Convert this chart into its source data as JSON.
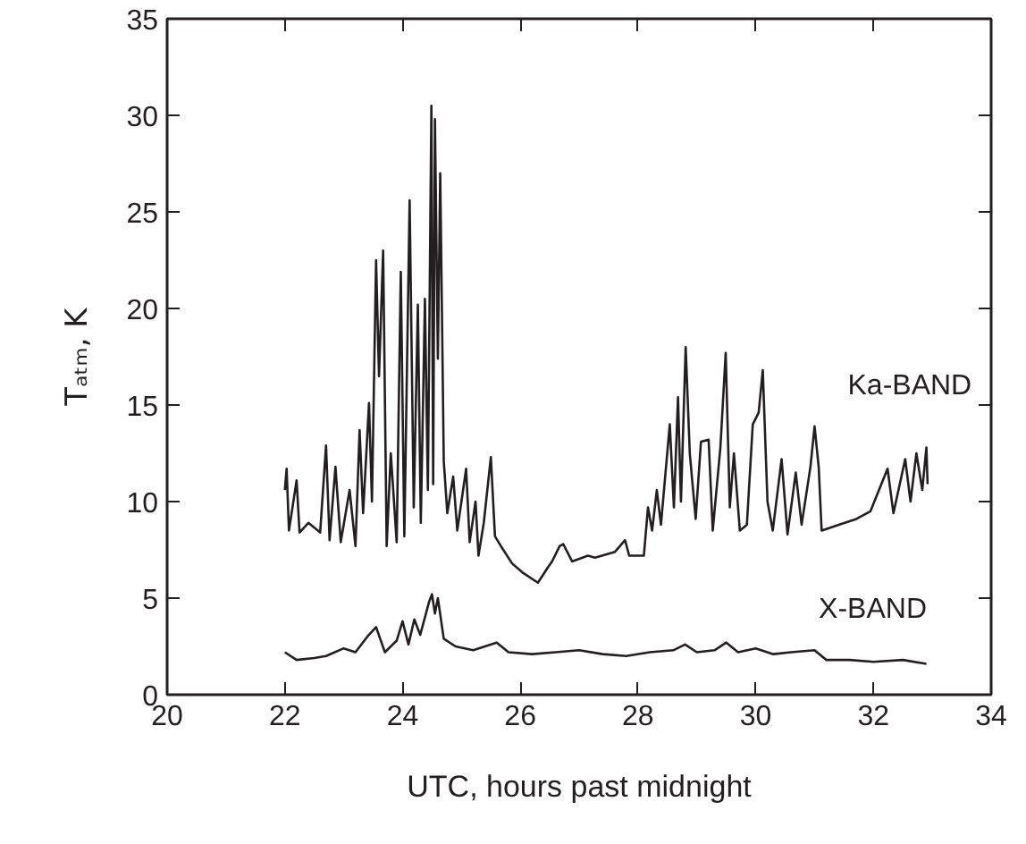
{
  "chart_data": {
    "type": "line",
    "xlabel": "UTC, hours past midnight",
    "ylabel": "Tₐₜₘ, K",
    "xlim": [
      20,
      34
    ],
    "xticks": [
      20,
      22,
      24,
      26,
      28,
      30,
      32,
      34
    ],
    "ylim": [
      0,
      35
    ],
    "yticks": [
      0,
      5,
      10,
      15,
      20,
      25,
      30,
      35
    ],
    "grid": false,
    "legend": "right",
    "marker": "none",
    "line_style": "solid",
    "series": [
      {
        "name": "Ka-BAND",
        "color": "#231f20",
        "x": [
          22.0,
          22.03,
          22.07,
          22.2,
          22.25,
          22.4,
          22.6,
          22.7,
          22.76,
          22.86,
          22.95,
          23.1,
          23.2,
          23.27,
          23.33,
          23.43,
          23.48,
          23.55,
          23.6,
          23.67,
          23.73,
          23.8,
          23.9,
          23.97,
          24.03,
          24.12,
          24.19,
          24.26,
          24.31,
          24.38,
          24.43,
          24.49,
          24.52,
          24.55,
          24.6,
          24.64,
          24.7,
          24.76,
          24.86,
          24.93,
          25.08,
          25.14,
          25.24,
          25.29,
          25.38,
          25.5,
          25.57,
          25.67,
          25.86,
          26.05,
          26.3,
          26.47,
          26.54,
          26.67,
          26.73,
          26.88,
          27.15,
          27.27,
          27.61,
          27.78,
          27.85,
          28.1,
          28.17,
          28.24,
          28.32,
          28.39,
          28.54,
          28.61,
          28.68,
          28.73,
          28.81,
          28.88,
          28.98,
          29.07,
          29.2,
          29.27,
          29.4,
          29.49,
          29.56,
          29.63,
          29.73,
          29.85,
          29.95,
          30.05,
          30.12,
          30.2,
          30.29,
          30.44,
          30.54,
          30.68,
          30.78,
          30.93,
          31.0,
          31.07,
          31.12,
          31.41,
          31.71,
          31.95,
          32.24,
          32.34,
          32.54,
          32.63,
          32.73,
          32.83,
          32.9,
          32.92
        ],
        "values": [
          10.6,
          11.7,
          8.5,
          11.1,
          8.4,
          8.9,
          8.4,
          12.9,
          8.0,
          11.8,
          7.9,
          10.6,
          7.7,
          13.7,
          9.4,
          15.1,
          10.0,
          22.5,
          16.5,
          23.0,
          7.7,
          12.5,
          7.9,
          21.9,
          8.2,
          25.6,
          9.7,
          20.2,
          8.9,
          20.5,
          10.6,
          30.5,
          10.9,
          29.8,
          17.4,
          27.0,
          12.1,
          9.4,
          11.3,
          8.5,
          11.7,
          7.9,
          10.0,
          7.2,
          8.9,
          12.3,
          8.2,
          7.7,
          6.8,
          6.3,
          5.8,
          6.6,
          6.9,
          7.7,
          7.8,
          6.9,
          7.2,
          7.1,
          7.4,
          8.0,
          7.2,
          7.2,
          9.7,
          8.5,
          10.6,
          8.8,
          14.0,
          9.7,
          15.4,
          10.0,
          18.0,
          12.5,
          9.1,
          13.1,
          13.2,
          8.5,
          12.8,
          17.7,
          9.7,
          12.5,
          8.5,
          8.8,
          14.0,
          14.6,
          16.8,
          10.0,
          8.5,
          12.2,
          8.3,
          11.5,
          8.8,
          11.8,
          13.9,
          11.8,
          8.5,
          8.8,
          9.1,
          9.5,
          11.7,
          9.4,
          12.2,
          10.0,
          12.5,
          10.6,
          12.8,
          10.9
        ]
      },
      {
        "name": "X-BAND",
        "color": "#231f20",
        "x": [
          22.0,
          22.2,
          22.5,
          22.7,
          23.0,
          23.2,
          23.4,
          23.55,
          23.7,
          23.9,
          24.0,
          24.1,
          24.2,
          24.3,
          24.45,
          24.5,
          24.55,
          24.6,
          24.7,
          24.9,
          25.2,
          25.6,
          25.8,
          26.2,
          26.6,
          27.0,
          27.4,
          27.8,
          28.2,
          28.6,
          28.8,
          29.0,
          29.3,
          29.5,
          29.7,
          30.0,
          30.3,
          30.6,
          31.0,
          31.2,
          31.6,
          32.0,
          32.5,
          32.9
        ],
        "values": [
          2.2,
          1.8,
          1.9,
          2.0,
          2.4,
          2.2,
          3.0,
          3.5,
          2.2,
          2.8,
          3.8,
          2.6,
          3.9,
          3.1,
          4.8,
          5.2,
          4.2,
          5.0,
          2.9,
          2.5,
          2.3,
          2.7,
          2.2,
          2.1,
          2.2,
          2.3,
          2.1,
          2.0,
          2.2,
          2.3,
          2.6,
          2.2,
          2.3,
          2.7,
          2.2,
          2.4,
          2.1,
          2.2,
          2.3,
          1.8,
          1.8,
          1.7,
          1.8,
          1.6
        ]
      }
    ]
  }
}
